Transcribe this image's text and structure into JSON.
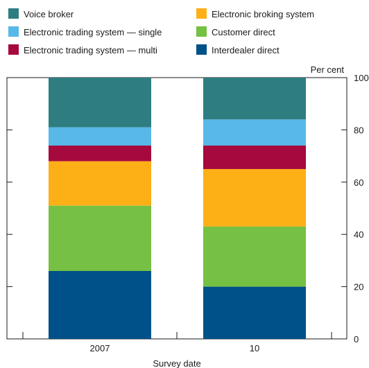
{
  "chart_data": {
    "type": "bar",
    "stacked": true,
    "categories": [
      "2007",
      "10"
    ],
    "xlabel": "Survey date",
    "ylabel": "Per cent",
    "ylim": [
      0,
      100
    ],
    "yticks": [
      0,
      20,
      40,
      60,
      80,
      100
    ],
    "grid": false,
    "legend_position": "top",
    "series": [
      {
        "name": "Interdealer direct",
        "color": "#005189",
        "values": [
          26,
          20
        ]
      },
      {
        "name": "Customer direct",
        "color": "#76c043",
        "values": [
          25,
          23
        ]
      },
      {
        "name": "Electronic broking system",
        "color": "#fcb016",
        "values": [
          17,
          22
        ]
      },
      {
        "name": "Electronic trading system — multi",
        "color": "#a6093d",
        "values": [
          6,
          9
        ]
      },
      {
        "name": "Electronic trading system — single",
        "color": "#58b8e8",
        "values": [
          7,
          10
        ]
      },
      {
        "name": "Voice broker",
        "color": "#2e7d80",
        "values": [
          19,
          16
        ]
      }
    ],
    "legend_order": [
      "Voice broker",
      "Electronic broking system",
      "Electronic trading system — single",
      "Customer direct",
      "Electronic trading system — multi",
      "Interdealer direct"
    ]
  }
}
